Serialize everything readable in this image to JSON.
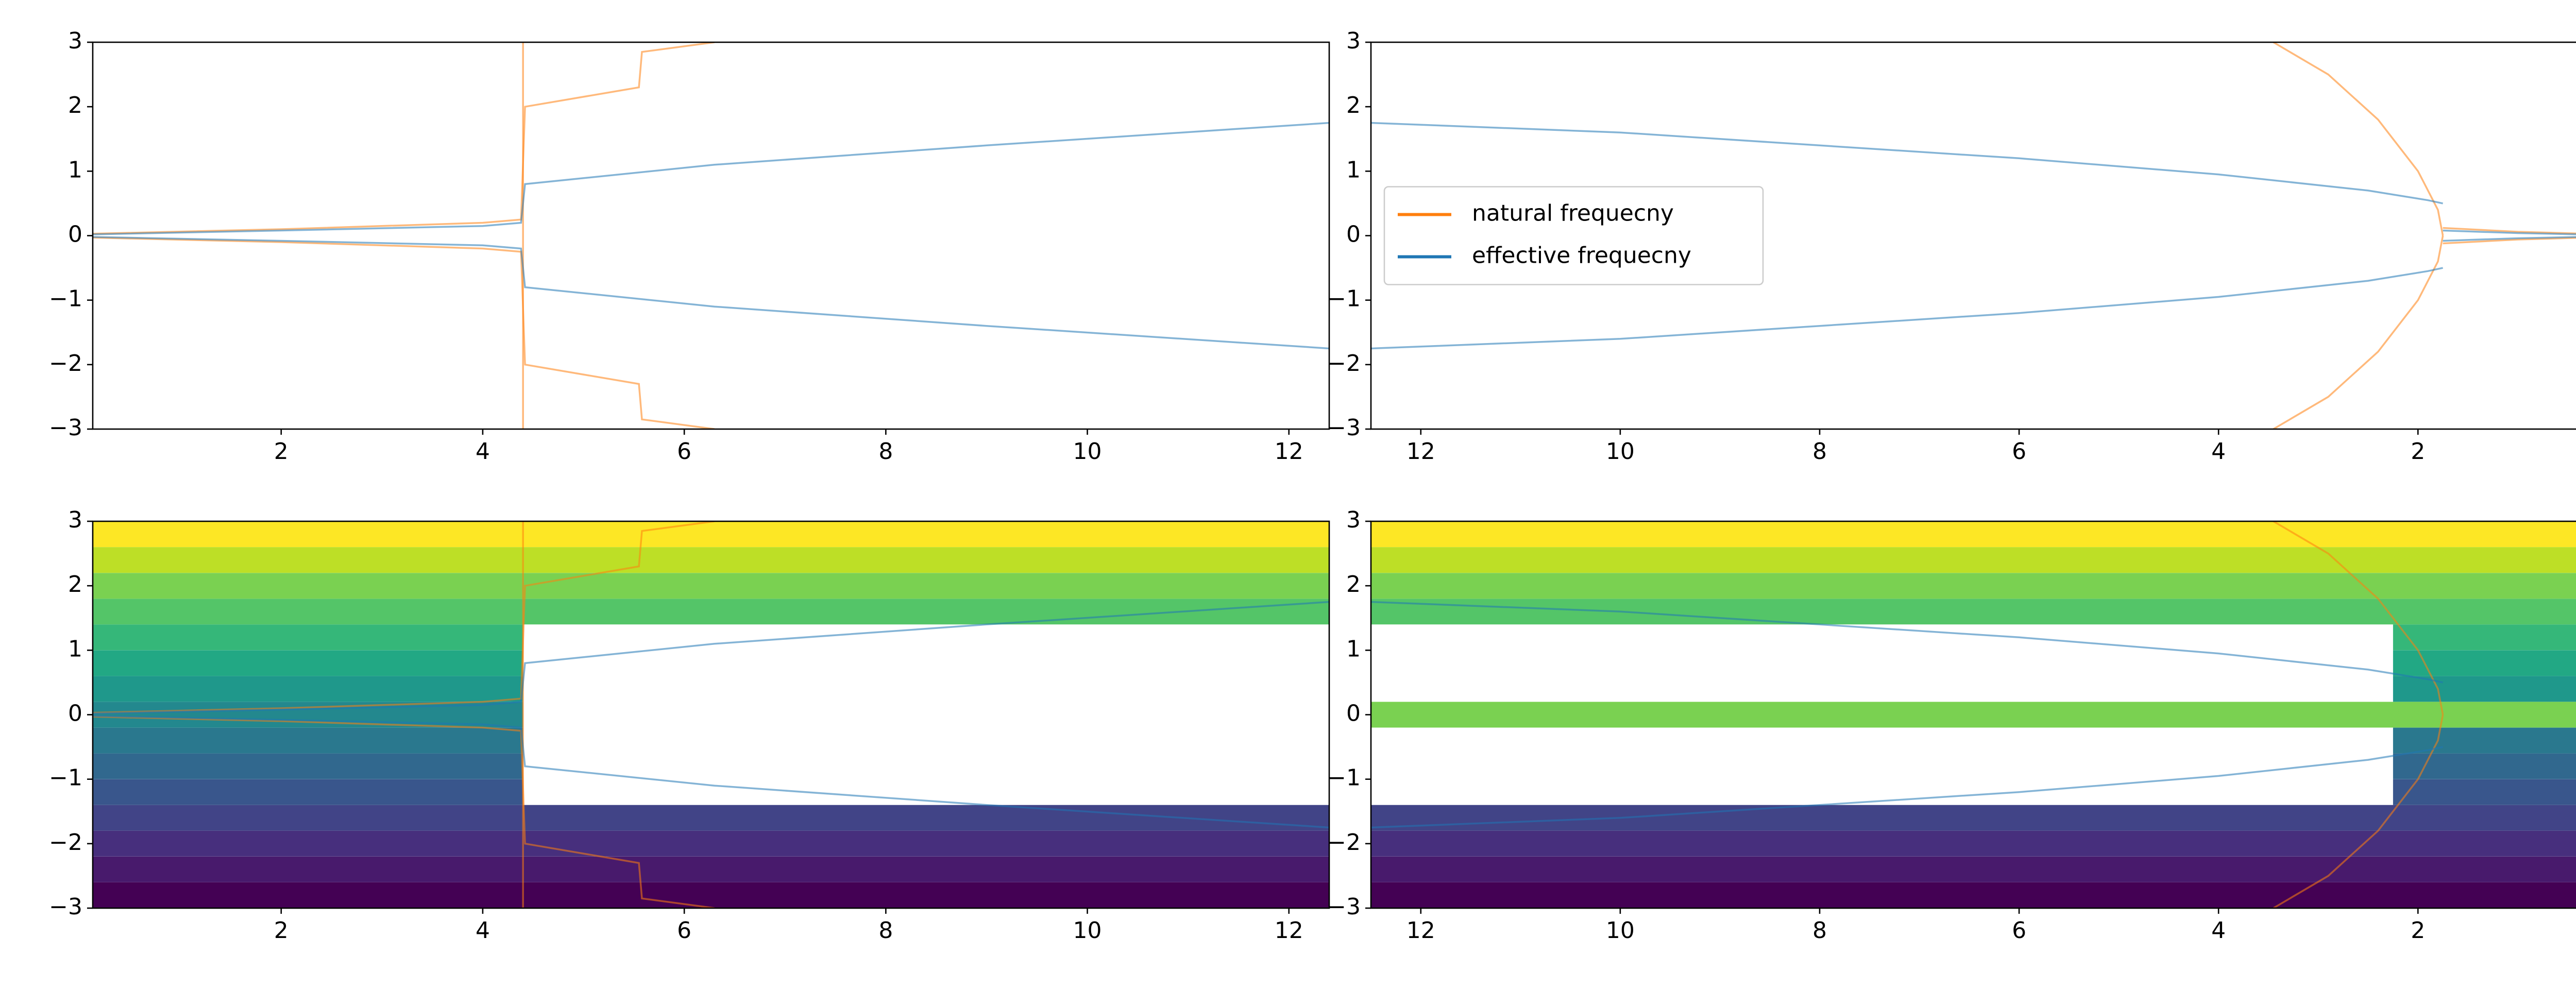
{
  "chart_data": [
    {
      "type": "line",
      "xlim": [
        0.13,
        12.4
      ],
      "ylim": [
        -3,
        3
      ],
      "xticks": [
        2,
        4,
        6,
        8,
        10,
        12
      ],
      "yticks": [
        {
          "value": -3,
          "label": "−3"
        },
        {
          "value": -2,
          "label": "−2"
        },
        {
          "value": -1,
          "label": "−1"
        },
        0,
        1,
        2,
        3
      ],
      "series": [
        {
          "color": "#ff7f0e",
          "x": [
            0.13,
            2,
            4,
            4.38,
            4.42,
            5.55,
            5.58,
            6.3
          ],
          "values": [
            0.03,
            0.1,
            0.2,
            0.25,
            2.0,
            2.3,
            2.85,
            3
          ]
        },
        {
          "color": "#ff7f0e",
          "x": [
            0.13,
            2,
            4,
            4.38,
            4.42,
            5.55,
            5.58,
            6.3
          ],
          "values": [
            -0.03,
            -0.1,
            -0.2,
            -0.25,
            -2.0,
            -2.3,
            -2.85,
            -3
          ]
        },
        {
          "color": "#ff7f0e",
          "x": [
            4.4,
            4.4
          ],
          "values": [
            -3,
            3
          ]
        },
        {
          "color": "#1f77b4",
          "x": [
            0.13,
            2,
            4,
            4.38,
            4.42,
            6.3,
            9,
            12.4
          ],
          "values": [
            0.02,
            0.08,
            0.15,
            0.2,
            0.8,
            1.1,
            1.4,
            1.75
          ]
        },
        {
          "color": "#1f77b4",
          "x": [
            0.13,
            2,
            4,
            4.38,
            4.42,
            6.3,
            9,
            12.4
          ],
          "values": [
            -0.02,
            -0.08,
            -0.15,
            -0.2,
            -0.8,
            -1.1,
            -1.4,
            -1.75
          ]
        }
      ]
    },
    {
      "type": "line",
      "xlim": [
        12.5,
        0.1
      ],
      "ylim": [
        -3,
        3
      ],
      "xticks": [
        12,
        10,
        8,
        6,
        4,
        2
      ],
      "yticks": [
        {
          "value": -3,
          "label": "−3"
        },
        {
          "value": -2,
          "label": "−2"
        },
        {
          "value": -1,
          "label": "−1"
        },
        0,
        1,
        2,
        3
      ],
      "legend": "center left",
      "series": [
        {
          "name": "natural frequecny",
          "color": "#ff7f0e",
          "x": [
            3.45,
            2.9,
            2.4,
            2.0,
            1.8,
            1.75
          ],
          "values": [
            3,
            2.5,
            1.8,
            1.0,
            0.4,
            0
          ]
        },
        {
          "name": "effective frequecny",
          "color": "#1f77b4",
          "x": [
            12.5,
            10,
            8,
            6,
            4,
            2.5,
            1.9,
            1.75
          ],
          "values": [
            1.75,
            1.6,
            1.4,
            1.2,
            0.95,
            0.7,
            0.55,
            0.5
          ]
        },
        {
          "color": "#ff7f0e",
          "x": [
            3.45,
            2.9,
            2.4,
            2.0,
            1.8,
            1.75
          ],
          "values": [
            -3,
            -2.5,
            -1.8,
            -1.0,
            -0.4,
            0
          ]
        },
        {
          "color": "#ff7f0e",
          "x": [
            1.75,
            1,
            0.1
          ],
          "values": [
            0.12,
            0.06,
            0.02
          ]
        },
        {
          "color": "#ff7f0e",
          "x": [
            1.75,
            1,
            0.1
          ],
          "values": [
            -0.12,
            -0.06,
            -0.02
          ]
        },
        {
          "color": "#1f77b4",
          "x": [
            12.5,
            10,
            8,
            6,
            4,
            2.5,
            1.9,
            1.75
          ],
          "values": [
            -1.75,
            -1.6,
            -1.4,
            -1.2,
            -0.95,
            -0.7,
            -0.55,
            -0.5
          ]
        },
        {
          "color": "#1f77b4",
          "x": [
            1.75,
            1,
            0.1
          ],
          "values": [
            0.08,
            0.04,
            0.01
          ]
        },
        {
          "color": "#1f77b4",
          "x": [
            1.75,
            1,
            0.1
          ],
          "values": [
            -0.08,
            -0.04,
            -0.01
          ]
        }
      ]
    },
    {
      "type": "line",
      "xlim": [
        0.13,
        12.4
      ],
      "ylim": [
        -3,
        3
      ],
      "xticks": [
        2,
        4,
        6,
        8,
        10,
        12
      ],
      "yticks": [
        {
          "value": -3,
          "label": "−3"
        },
        {
          "value": -2,
          "label": "−2"
        },
        {
          "value": -1,
          "label": "−1"
        },
        0,
        1,
        2,
        3
      ],
      "series": [
        {
          "color": "#440154",
          "x": [
            0.13,
            12.4
          ],
          "values": [
            -2.8,
            -2.8
          ]
        },
        {
          "color": "#481a6c",
          "x": [
            0.13,
            12.4
          ],
          "values": [
            -2.4,
            -2.4
          ]
        },
        {
          "color": "#472f7d",
          "x": [
            0.13,
            12.4
          ],
          "values": [
            -2.0,
            -2.0
          ]
        },
        {
          "color": "#414487",
          "x": [
            0.13,
            12.4
          ],
          "values": [
            -1.6,
            -1.6
          ]
        },
        {
          "color": "#39568c",
          "x": [
            0.13,
            4.4
          ],
          "values": [
            -1.2,
            -1.2
          ]
        },
        {
          "color": "#31688e",
          "x": [
            0.13,
            4.4
          ],
          "values": [
            -0.8,
            -0.8
          ]
        },
        {
          "color": "#2a788e",
          "x": [
            0.13,
            4.4
          ],
          "values": [
            -0.4,
            -0.4
          ]
        },
        {
          "color": "#23888e",
          "x": [
            0.13,
            4.4
          ],
          "values": [
            0,
            0
          ]
        },
        {
          "color": "#1f988b",
          "x": [
            0.13,
            4.4
          ],
          "values": [
            0.4,
            0.4
          ]
        },
        {
          "color": "#22a884",
          "x": [
            0.13,
            4.4
          ],
          "values": [
            0.8,
            0.8
          ]
        },
        {
          "color": "#35b779",
          "x": [
            0.13,
            4.4
          ],
          "values": [
            1.2,
            1.2
          ]
        },
        {
          "color": "#54c568",
          "x": [
            0.13,
            12.4
          ],
          "values": [
            1.6,
            1.6
          ]
        },
        {
          "color": "#7ad151",
          "x": [
            0.13,
            12.4
          ],
          "values": [
            2.0,
            2.0
          ]
        },
        {
          "color": "#bddf26",
          "x": [
            0.13,
            12.4
          ],
          "values": [
            2.4,
            2.4
          ]
        },
        {
          "color": "#fde725",
          "x": [
            0.13,
            12.4
          ],
          "values": [
            2.8,
            2.8
          ]
        },
        {
          "color": "#ff7f0e",
          "x": [
            0.13,
            2,
            4,
            4.38,
            4.42,
            5.55,
            5.58,
            6.3
          ],
          "values": [
            0.03,
            0.1,
            0.2,
            0.25,
            2.0,
            2.3,
            2.85,
            3
          ]
        },
        {
          "color": "#ff7f0e",
          "x": [
            0.13,
            2,
            4,
            4.38,
            4.42,
            5.55,
            5.58,
            6.3
          ],
          "values": [
            -0.03,
            -0.1,
            -0.2,
            -0.25,
            -2.0,
            -2.3,
            -2.85,
            -3
          ]
        },
        {
          "color": "#ff7f0e",
          "x": [
            4.4,
            4.4
          ],
          "values": [
            -3,
            3
          ]
        },
        {
          "color": "#1f77b4",
          "x": [
            0.13,
            2,
            4,
            4.38,
            4.42,
            6.3,
            9,
            12.4
          ],
          "values": [
            0.02,
            0.08,
            0.15,
            0.2,
            0.8,
            1.1,
            1.4,
            1.75
          ]
        },
        {
          "color": "#1f77b4",
          "x": [
            0.13,
            2,
            4,
            4.38,
            4.42,
            6.3,
            9,
            12.4
          ],
          "values": [
            -0.02,
            -0.08,
            -0.15,
            -0.2,
            -0.8,
            -1.1,
            -1.4,
            -1.75
          ]
        }
      ]
    },
    {
      "type": "line",
      "xlim": [
        12.5,
        0.1
      ],
      "ylim": [
        -3,
        3
      ],
      "xticks": [
        12,
        10,
        8,
        6,
        4,
        2
      ],
      "yticks": [
        {
          "value": -3,
          "label": "−3"
        },
        {
          "value": -2,
          "label": "−2"
        },
        {
          "value": -1,
          "label": "−1"
        },
        0,
        1,
        2,
        3
      ],
      "series": [
        {
          "color": "#440154",
          "x": [
            12.5,
            0.1
          ],
          "values": [
            -2.8,
            -2.8
          ]
        },
        {
          "color": "#481a6c",
          "x": [
            12.5,
            0.1
          ],
          "values": [
            -2.4,
            -2.4
          ]
        },
        {
          "color": "#472f7d",
          "x": [
            12.5,
            0.1
          ],
          "values": [
            -2.0,
            -2.0
          ]
        },
        {
          "color": "#414487",
          "x": [
            12.5,
            0.1
          ],
          "values": [
            -1.6,
            -1.6
          ]
        },
        {
          "color": "#39568c",
          "x": [
            2.25,
            0.1
          ],
          "values": [
            -1.2,
            -1.2
          ]
        },
        {
          "color": "#31688e",
          "x": [
            2.25,
            0.1
          ],
          "values": [
            -0.8,
            -0.8
          ]
        },
        {
          "color": "#2a788e",
          "x": [
            2.25,
            0.1
          ],
          "values": [
            -0.4,
            -0.4
          ]
        },
        {
          "color": "#7ad151",
          "x": [
            12.5,
            0.1
          ],
          "values": [
            0,
            0
          ]
        },
        {
          "color": "#1f988b",
          "x": [
            2.25,
            0.1
          ],
          "values": [
            0.4,
            0.4
          ]
        },
        {
          "color": "#22a884",
          "x": [
            2.25,
            0.1
          ],
          "values": [
            0.8,
            0.8
          ]
        },
        {
          "color": "#35b779",
          "x": [
            2.25,
            0.1
          ],
          "values": [
            1.2,
            1.2
          ]
        },
        {
          "color": "#54c568",
          "x": [
            12.5,
            0.1
          ],
          "values": [
            1.6,
            1.6
          ]
        },
        {
          "color": "#7ad151",
          "x": [
            12.5,
            0.1
          ],
          "values": [
            2.0,
            2.0
          ]
        },
        {
          "color": "#bddf26",
          "x": [
            12.5,
            0.1
          ],
          "values": [
            2.4,
            2.4
          ]
        },
        {
          "color": "#fde725",
          "x": [
            12.5,
            0.1
          ],
          "values": [
            2.8,
            2.8
          ]
        },
        {
          "color": "#ff7f0e",
          "x": [
            3.45,
            2.9,
            2.4,
            2.0,
            1.8,
            1.75
          ],
          "values": [
            3,
            2.5,
            1.8,
            1.0,
            0.4,
            0
          ]
        },
        {
          "color": "#ff7f0e",
          "x": [
            3.45,
            2.9,
            2.4,
            2.0,
            1.8,
            1.75
          ],
          "values": [
            -3,
            -2.5,
            -1.8,
            -1.0,
            -0.4,
            0
          ]
        },
        {
          "color": "#1f77b4",
          "x": [
            12.5,
            10,
            8,
            6,
            4,
            2.5,
            1.9,
            1.75
          ],
          "values": [
            1.75,
            1.6,
            1.4,
            1.2,
            0.95,
            0.7,
            0.55,
            0.5
          ]
        },
        {
          "color": "#1f77b4",
          "x": [
            12.5,
            10,
            8,
            6,
            4,
            2.5,
            1.9,
            1.75
          ],
          "values": [
            -1.75,
            -1.6,
            -1.4,
            -1.2,
            -0.95,
            -0.7,
            -0.55,
            -0.5
          ]
        }
      ]
    }
  ]
}
